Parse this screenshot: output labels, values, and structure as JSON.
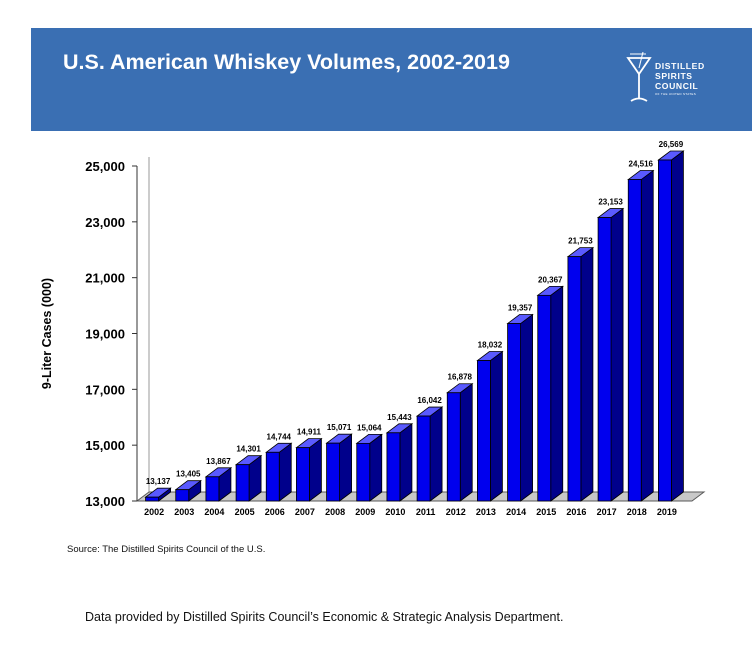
{
  "header": {
    "title": "U.S. American Whiskey Volumes, 2002-2019",
    "logo_lines": [
      "DISTILLED",
      "SPIRITS",
      "COUNCIL"
    ],
    "logo_subline": "OF THE UNITED STATES",
    "banner_color": "#3a6fb3"
  },
  "chart_data": {
    "type": "bar",
    "title": "",
    "xlabel": "",
    "ylabel": "9-Liter Cases (000)",
    "ylim": [
      13000,
      25000
    ],
    "yticks": [
      13000,
      15000,
      17000,
      19000,
      21000,
      23000,
      25000
    ],
    "ytick_labels": [
      "13,000",
      "15,000",
      "17,000",
      "19,000",
      "21,000",
      "23,000",
      "25,000"
    ],
    "categories": [
      "2002",
      "2003",
      "2004",
      "2005",
      "2006",
      "2007",
      "2008",
      "2009",
      "2010",
      "2011",
      "2012",
      "2013",
      "2014",
      "2015",
      "2016",
      "2017",
      "2018",
      "2019"
    ],
    "values": [
      13137,
      13405,
      13867,
      14301,
      14744,
      14911,
      15071,
      15064,
      15443,
      16042,
      16878,
      18032,
      19357,
      20367,
      21753,
      23153,
      24516,
      26569
    ],
    "data_labels": [
      "13,137",
      "13,405",
      "13,867",
      "14,301",
      "14,744",
      "14,911",
      "15,071",
      "15,064",
      "15,443",
      "16,042",
      "16,878",
      "18,032",
      "19,357",
      "20,367",
      "21,753",
      "23,153",
      "24,516",
      "26,569"
    ],
    "bar_color": "#0000ee",
    "grid": false,
    "legend": false,
    "style": "3d"
  },
  "source": "Source:  The Distilled Spirits Council of the U.S.",
  "footer": "Data provided by Distilled Spirits Council’s Economic & Strategic Analysis Department."
}
